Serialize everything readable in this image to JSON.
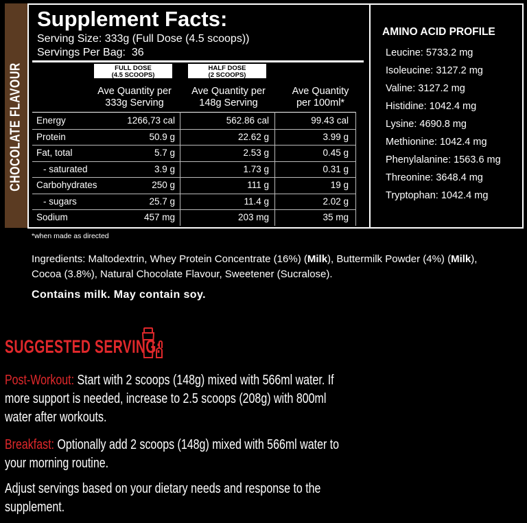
{
  "flavour": "CHOCOLATE FLAVOUR",
  "nutrition": {
    "title": "Supplement Facts:",
    "serving_size": "Serving Size: 333g (Full Dose (4.5 scoops))",
    "servings_per_bag": "Servings Per Bag:  36",
    "columns": [
      {
        "badge": [
          "FULL DOSE",
          "(4.5 SCOOPS)"
        ],
        "heading": [
          "Ave Quantity per",
          "333g Serving"
        ]
      },
      {
        "badge": [
          "HALF DOSE",
          "(2 SCOOPS)"
        ],
        "heading": [
          "Ave Quantity per",
          "148g Serving"
        ]
      },
      {
        "heading": [
          "Ave Quantity",
          "per 100ml*"
        ]
      }
    ],
    "rows": [
      {
        "label": "Energy",
        "values": [
          "1266,73 cal",
          "562.86 cal",
          "99.43 cal"
        ]
      },
      {
        "label": "Protein",
        "values": [
          "50.9 g",
          "22.62 g",
          "3.99 g"
        ]
      },
      {
        "label": "Fat, total",
        "values": [
          "5.7 g",
          "2.53 g",
          "0.45 g"
        ]
      },
      {
        "label": "- saturated",
        "values": [
          "3.9 g",
          "1.73 g",
          "0.31 g"
        ]
      },
      {
        "label": "Carbohydrates",
        "values": [
          "250 g",
          "111 g",
          "19 g"
        ]
      },
      {
        "label": "- sugars",
        "values": [
          "25.7 g",
          "11.4 g",
          "2.02 g"
        ]
      },
      {
        "label": "Sodium",
        "values": [
          "457 mg",
          "203 mg",
          "35 mg"
        ]
      }
    ]
  },
  "amino": {
    "title": "AMINO ACID PROFILE",
    "items": [
      "Leucine: 5733.2 mg",
      "Isoleucine: 3127.2 mg",
      "Valine: 3127.2 mg",
      "Histidine: 1042.4 mg",
      "Lysine: 4690.8 mg",
      "Methionine: 1042.4 mg",
      "Phenylalanine: 1563.6 mg",
      "Threonine: 3648.4 mg",
      "Tryptophan: 1042.4 mg"
    ]
  },
  "footnote": "*when made as directed",
  "ingredients": [
    "Ingredients: Maltodextrin, Whey Protein Concentrate (16%) (",
    "Milk",
    "), Buttermilk Powder (4%) (",
    "Milk",
    "), Cocoa (3.8%), Natural Chocolate Flavour, Sweetener (Sucralose)."
  ],
  "allergens": "Contains milk. May contain soy.",
  "suggested": {
    "title": "SUGGESTED SERVING:",
    "paragraphs": [
      {
        "label": "Post-Workout:",
        "lines": [
          "Start with 2 scoops (148g) mixed with 566ml water. If",
          "more support is needed, increase to 2.5 scoops (208g) with 800ml",
          "water after workouts."
        ]
      },
      {
        "label": "Breakfast:",
        "lines": [
          "Optionally add 2 scoops (148g) mixed with 566ml water to",
          "your morning routine."
        ]
      },
      {
        "lines": [
          "Adjust servings based on your dietary needs and response to the",
          "supplement."
        ]
      }
    ]
  }
}
